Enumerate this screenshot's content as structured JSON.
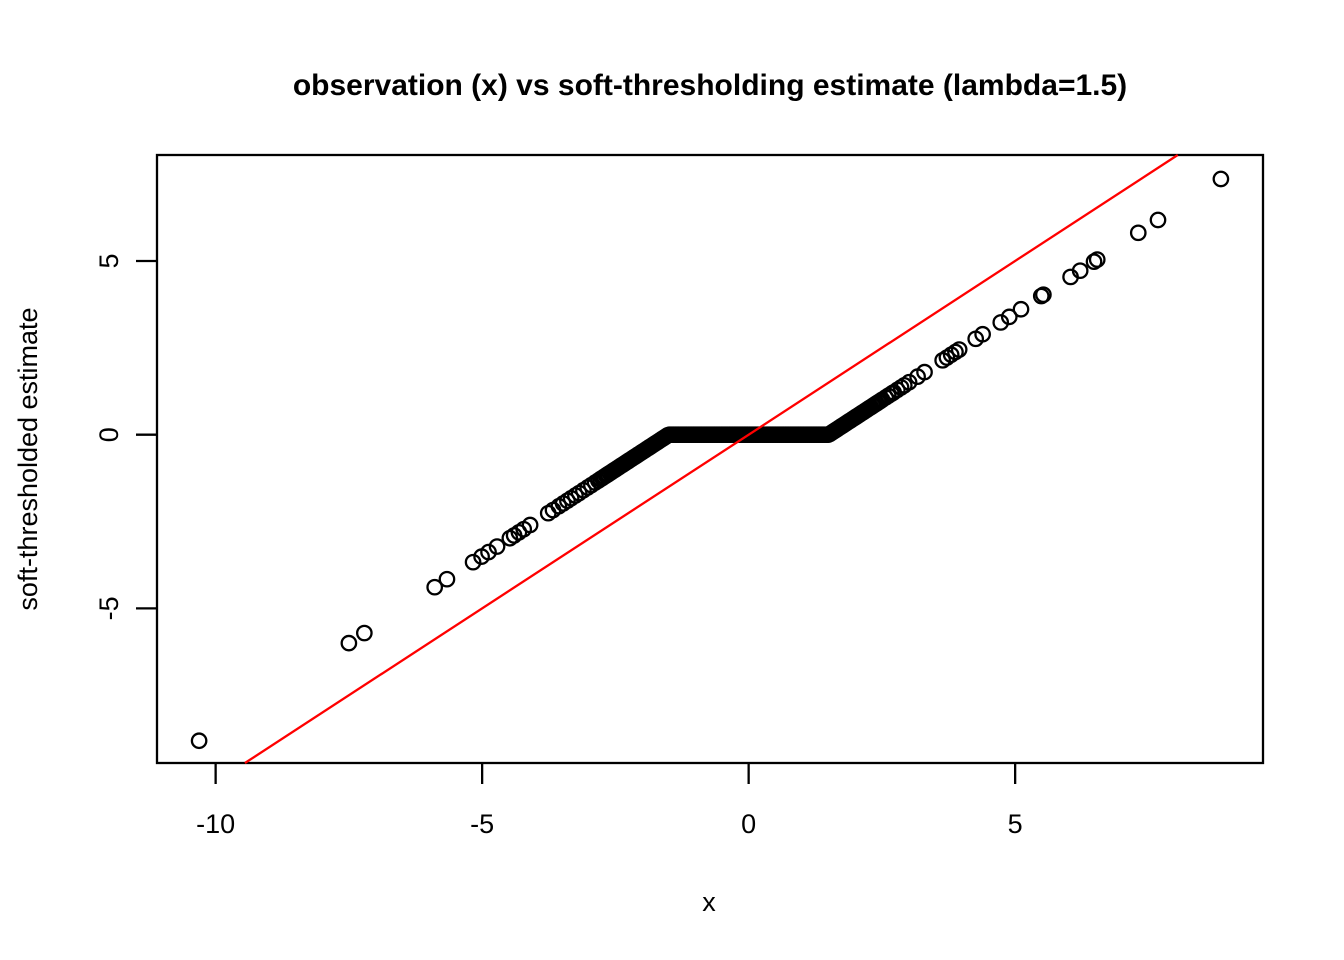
{
  "figure": {
    "background": "#ffffff",
    "foreground": "#000000"
  },
  "chart_data": {
    "type": "scatter",
    "title": "observation (x) vs soft-thresholding estimate (lambda=1.5)",
    "xlabel": "x",
    "ylabel": "soft-thresholded estimate",
    "x_ticks": [
      -10,
      -5,
      0,
      5
    ],
    "y_ticks": [
      -5,
      0,
      5
    ],
    "xlim": [
      -11.1,
      9.65
    ],
    "ylim": [
      -9.45,
      8.05
    ],
    "grid": false,
    "legend": "none",
    "lambda": 1.5,
    "estimator_rule": "y = sign(x) * max(|x| - 1.5, 0)",
    "marker": {
      "shape": "open-circle",
      "color": "#000000",
      "radius_px": 7.2
    },
    "reference_line": {
      "equation": "y = x",
      "color": "#ff0000"
    },
    "points_x": [
      -10.31,
      -7.5,
      -7.21,
      -5.89,
      -5.66,
      -5.17,
      -5.01,
      -4.88,
      -4.72,
      -4.48,
      -4.4,
      -4.31,
      -4.22,
      -4.1,
      -3.76,
      -3.67,
      -3.56,
      -3.48,
      -3.4,
      -3.33,
      -3.25,
      -3.18,
      -3.1,
      -3.02,
      -2.95,
      -2.88,
      -2.82,
      2.57,
      2.62,
      2.68,
      2.72,
      2.79,
      2.86,
      2.92,
      3.01,
      3.17,
      3.3,
      3.64,
      3.72,
      3.8,
      3.88,
      3.95,
      4.26,
      4.39,
      4.73,
      4.89,
      5.11,
      5.49,
      5.53,
      6.04,
      6.22,
      6.48,
      6.54,
      7.31,
      7.68,
      8.86
    ],
    "dense_band_x": {
      "from": -2.78,
      "to": 2.52,
      "step": 0.035
    }
  }
}
